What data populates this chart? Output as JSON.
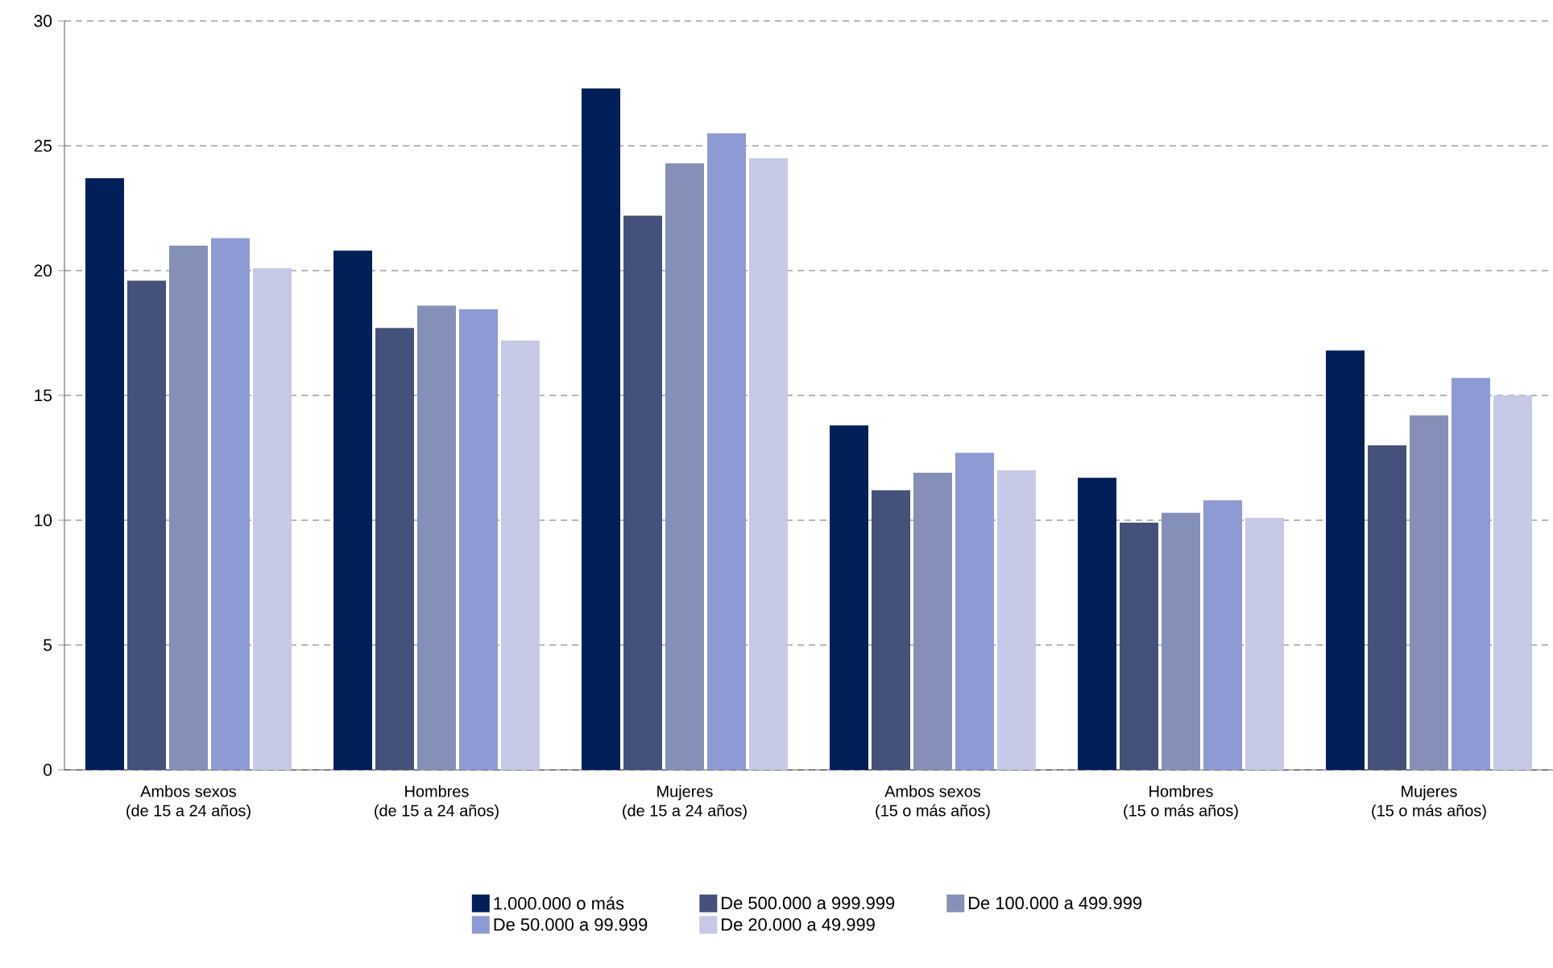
{
  "chart_data": {
    "type": "bar",
    "categories": [
      "Ambos sexos\n(de 15 a 24 años)",
      "Hombres\n(de 15 a 24 años)",
      "Mujeres\n(de 15 a 24 años)",
      "Ambos sexos\n(15 o más años)",
      "Hombres\n(15 o más años)",
      "Mujeres\n(15 o más años)"
    ],
    "series": [
      {
        "name": "1.000.000 o más",
        "color": "#021f58",
        "values": [
          23.7,
          20.8,
          27.3,
          13.8,
          11.7,
          16.8
        ]
      },
      {
        "name": "De 500.000 a 999.999",
        "color": "#44517a",
        "values": [
          19.6,
          17.7,
          22.2,
          11.2,
          9.9,
          13.0
        ]
      },
      {
        "name": "De 100.000 a 499.999",
        "color": "#8590b8",
        "values": [
          21.0,
          18.6,
          24.3,
          11.9,
          10.3,
          14.2
        ]
      },
      {
        "name": "De 50.000 a 99.999",
        "color": "#8e9ad4",
        "values": [
          21.3,
          18.45,
          25.5,
          12.7,
          10.8,
          15.7
        ]
      },
      {
        "name": "De 20.000 a 49.999",
        "color": "#c6c9e5",
        "values": [
          20.1,
          17.2,
          24.5,
          12.0,
          10.1,
          15.0
        ]
      }
    ],
    "ylim": [
      0,
      30
    ],
    "yticks": [
      0,
      5,
      10,
      15,
      20,
      25,
      30
    ],
    "grid": "y",
    "legend": "bottom"
  }
}
